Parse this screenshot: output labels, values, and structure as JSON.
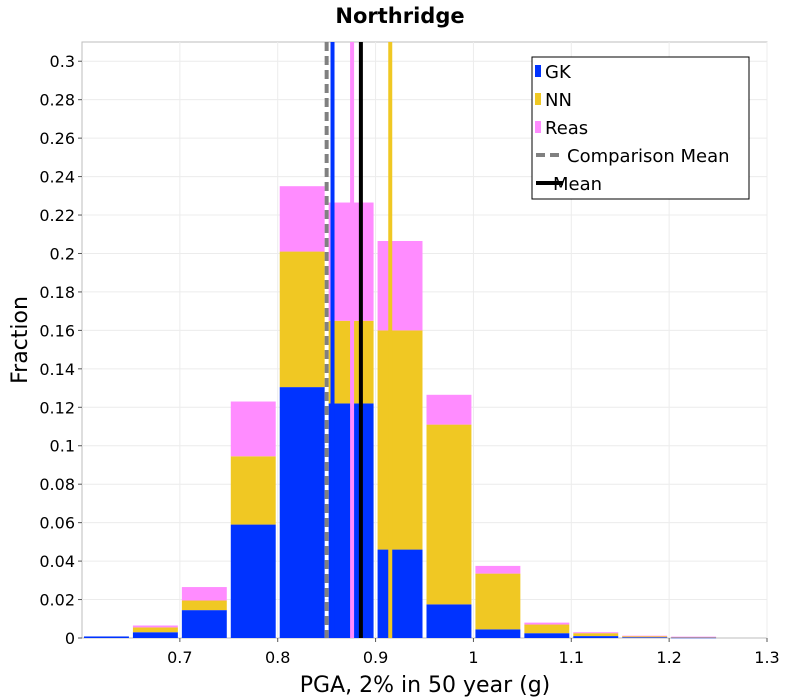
{
  "chart_data": {
    "type": "bar",
    "stacked": true,
    "title": "Northridge",
    "xlabel": "PGA, 2% in 50 year (g)",
    "ylabel": "Fraction",
    "xlim": [
      0.6,
      1.3
    ],
    "ylim": [
      0,
      0.31
    ],
    "x_ticks": [
      "0.7",
      "0.8",
      "0.9",
      "1",
      "1.1",
      "1.2",
      "1.3"
    ],
    "y_ticks": [
      "0",
      "0.02",
      "0.04",
      "0.06",
      "0.08",
      "0.1",
      "0.12",
      "0.14",
      "0.16",
      "0.18",
      "0.2",
      "0.22",
      "0.24",
      "0.26",
      "0.28",
      "0.3"
    ],
    "grid": true,
    "legend_position": "top-right",
    "bin_width": 0.05,
    "bin_centers": [
      0.625,
      0.675,
      0.725,
      0.775,
      0.825,
      0.875,
      0.925,
      0.975,
      1.025,
      1.075,
      1.125,
      1.175,
      1.225
    ],
    "series": [
      {
        "name": "GK",
        "color": "#0033ff",
        "values": [
          0.0008,
          0.003,
          0.0145,
          0.059,
          0.1305,
          0.122,
          0.046,
          0.0175,
          0.0045,
          0.0025,
          0.001,
          0.0004,
          0.0002
        ]
      },
      {
        "name": "NN",
        "color": "#f0c823",
        "values": [
          0.0,
          0.0025,
          0.005,
          0.0355,
          0.0705,
          0.043,
          0.114,
          0.0935,
          0.029,
          0.0045,
          0.0015,
          0.0006,
          0.0003
        ]
      },
      {
        "name": "Reas",
        "color": "#ff8cff",
        "values": [
          0.0,
          0.001,
          0.007,
          0.0285,
          0.034,
          0.0615,
          0.0465,
          0.0155,
          0.004,
          0.001,
          0.0005,
          0.0002,
          0.0002
        ]
      }
    ],
    "vertical_lines": [
      {
        "name": "Comparison Mean",
        "x": 0.85,
        "color": "#808080",
        "style": "dashed"
      },
      {
        "name": "GK mean",
        "x": 0.856,
        "color": "#0033ff",
        "style": "solid"
      },
      {
        "name": "Reas mean",
        "x": 0.876,
        "color": "#ff8cff",
        "style": "solid"
      },
      {
        "name": "Mean",
        "x": 0.885,
        "color": "#000000",
        "style": "solid"
      },
      {
        "name": "NN mean",
        "x": 0.915,
        "color": "#f0c823",
        "style": "solid"
      }
    ],
    "legend": [
      {
        "label": "GK",
        "color": "#0033ff",
        "kind": "bar"
      },
      {
        "label": "NN",
        "color": "#f0c823",
        "kind": "bar"
      },
      {
        "label": "Reas",
        "color": "#ff8cff",
        "kind": "bar"
      },
      {
        "label": "Comparison Mean",
        "color": "#808080",
        "kind": "dashed"
      },
      {
        "label": "Mean",
        "color": "#000000",
        "kind": "solid"
      }
    ]
  }
}
